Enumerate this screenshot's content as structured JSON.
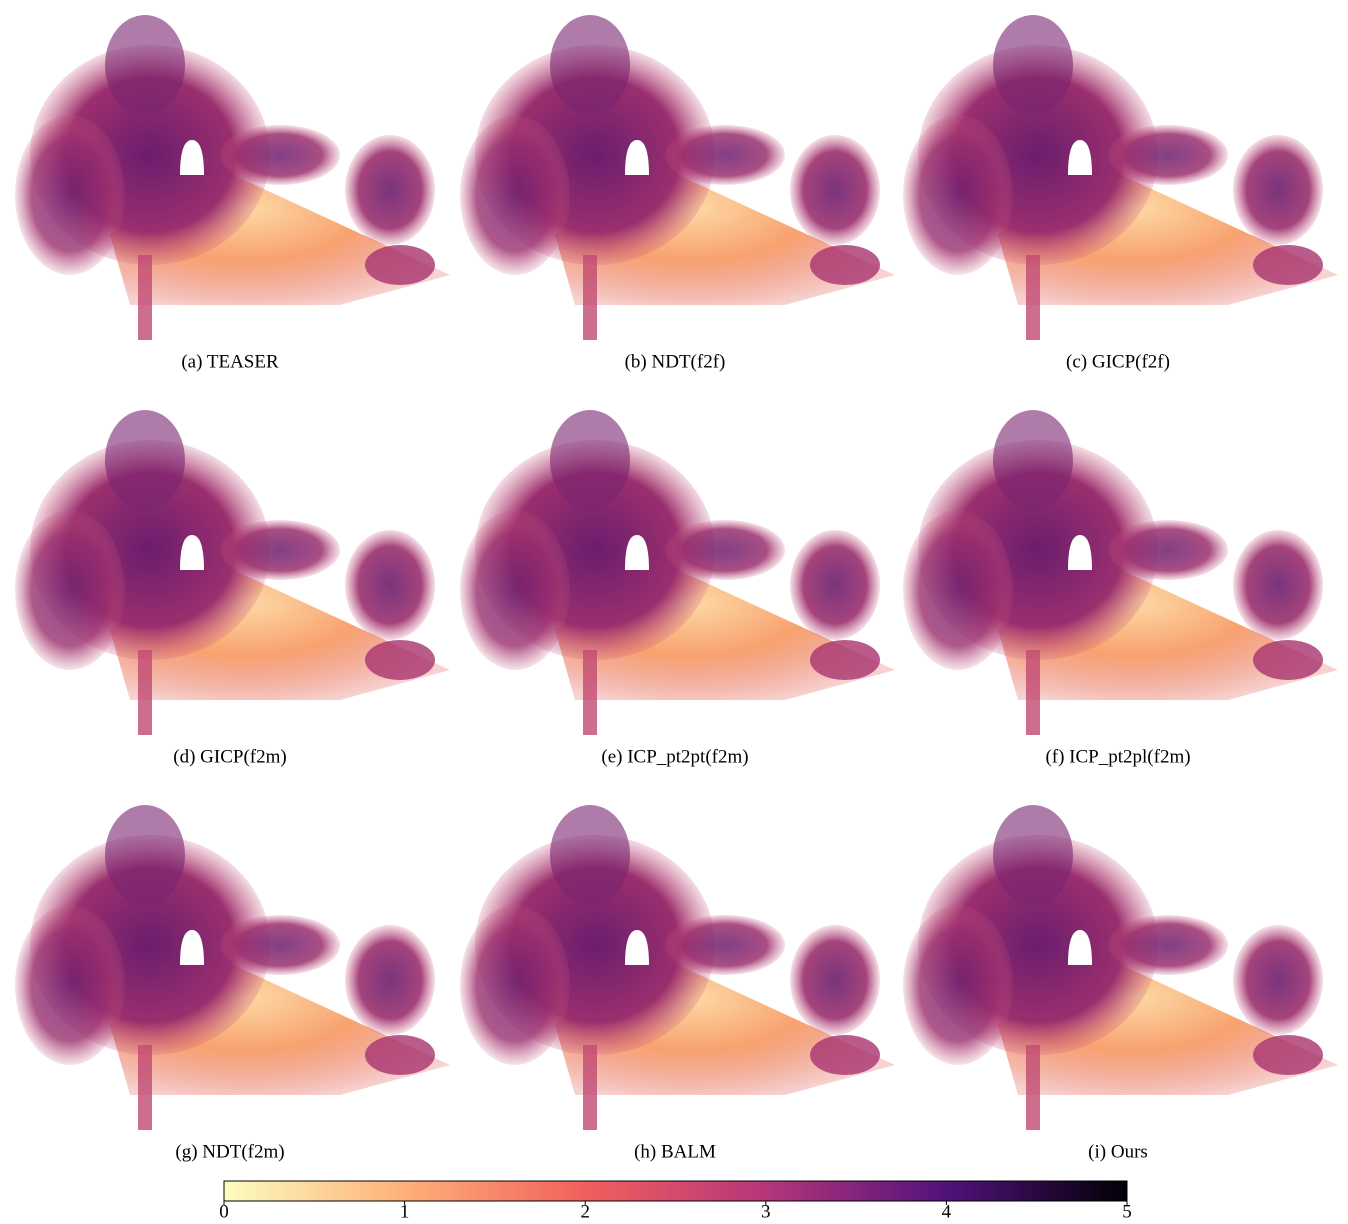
{
  "panels": [
    {
      "caption": "(a) TEASER"
    },
    {
      "caption": "(b) NDT(f2f)"
    },
    {
      "caption": "(c) GICP(f2f)"
    },
    {
      "caption": "(d) GICP(f2m)"
    },
    {
      "caption": "(e) ICP_pt2pt(f2m)"
    },
    {
      "caption": "(f) ICP_pt2pl(f2m)"
    },
    {
      "caption": "(g) NDT(f2m)"
    },
    {
      "caption": "(h) BALM"
    },
    {
      "caption": "(i) Ours"
    }
  ],
  "colorbar": {
    "lim": [
      0,
      5
    ],
    "ticks": [
      0,
      1,
      2,
      3,
      4,
      5
    ]
  }
}
